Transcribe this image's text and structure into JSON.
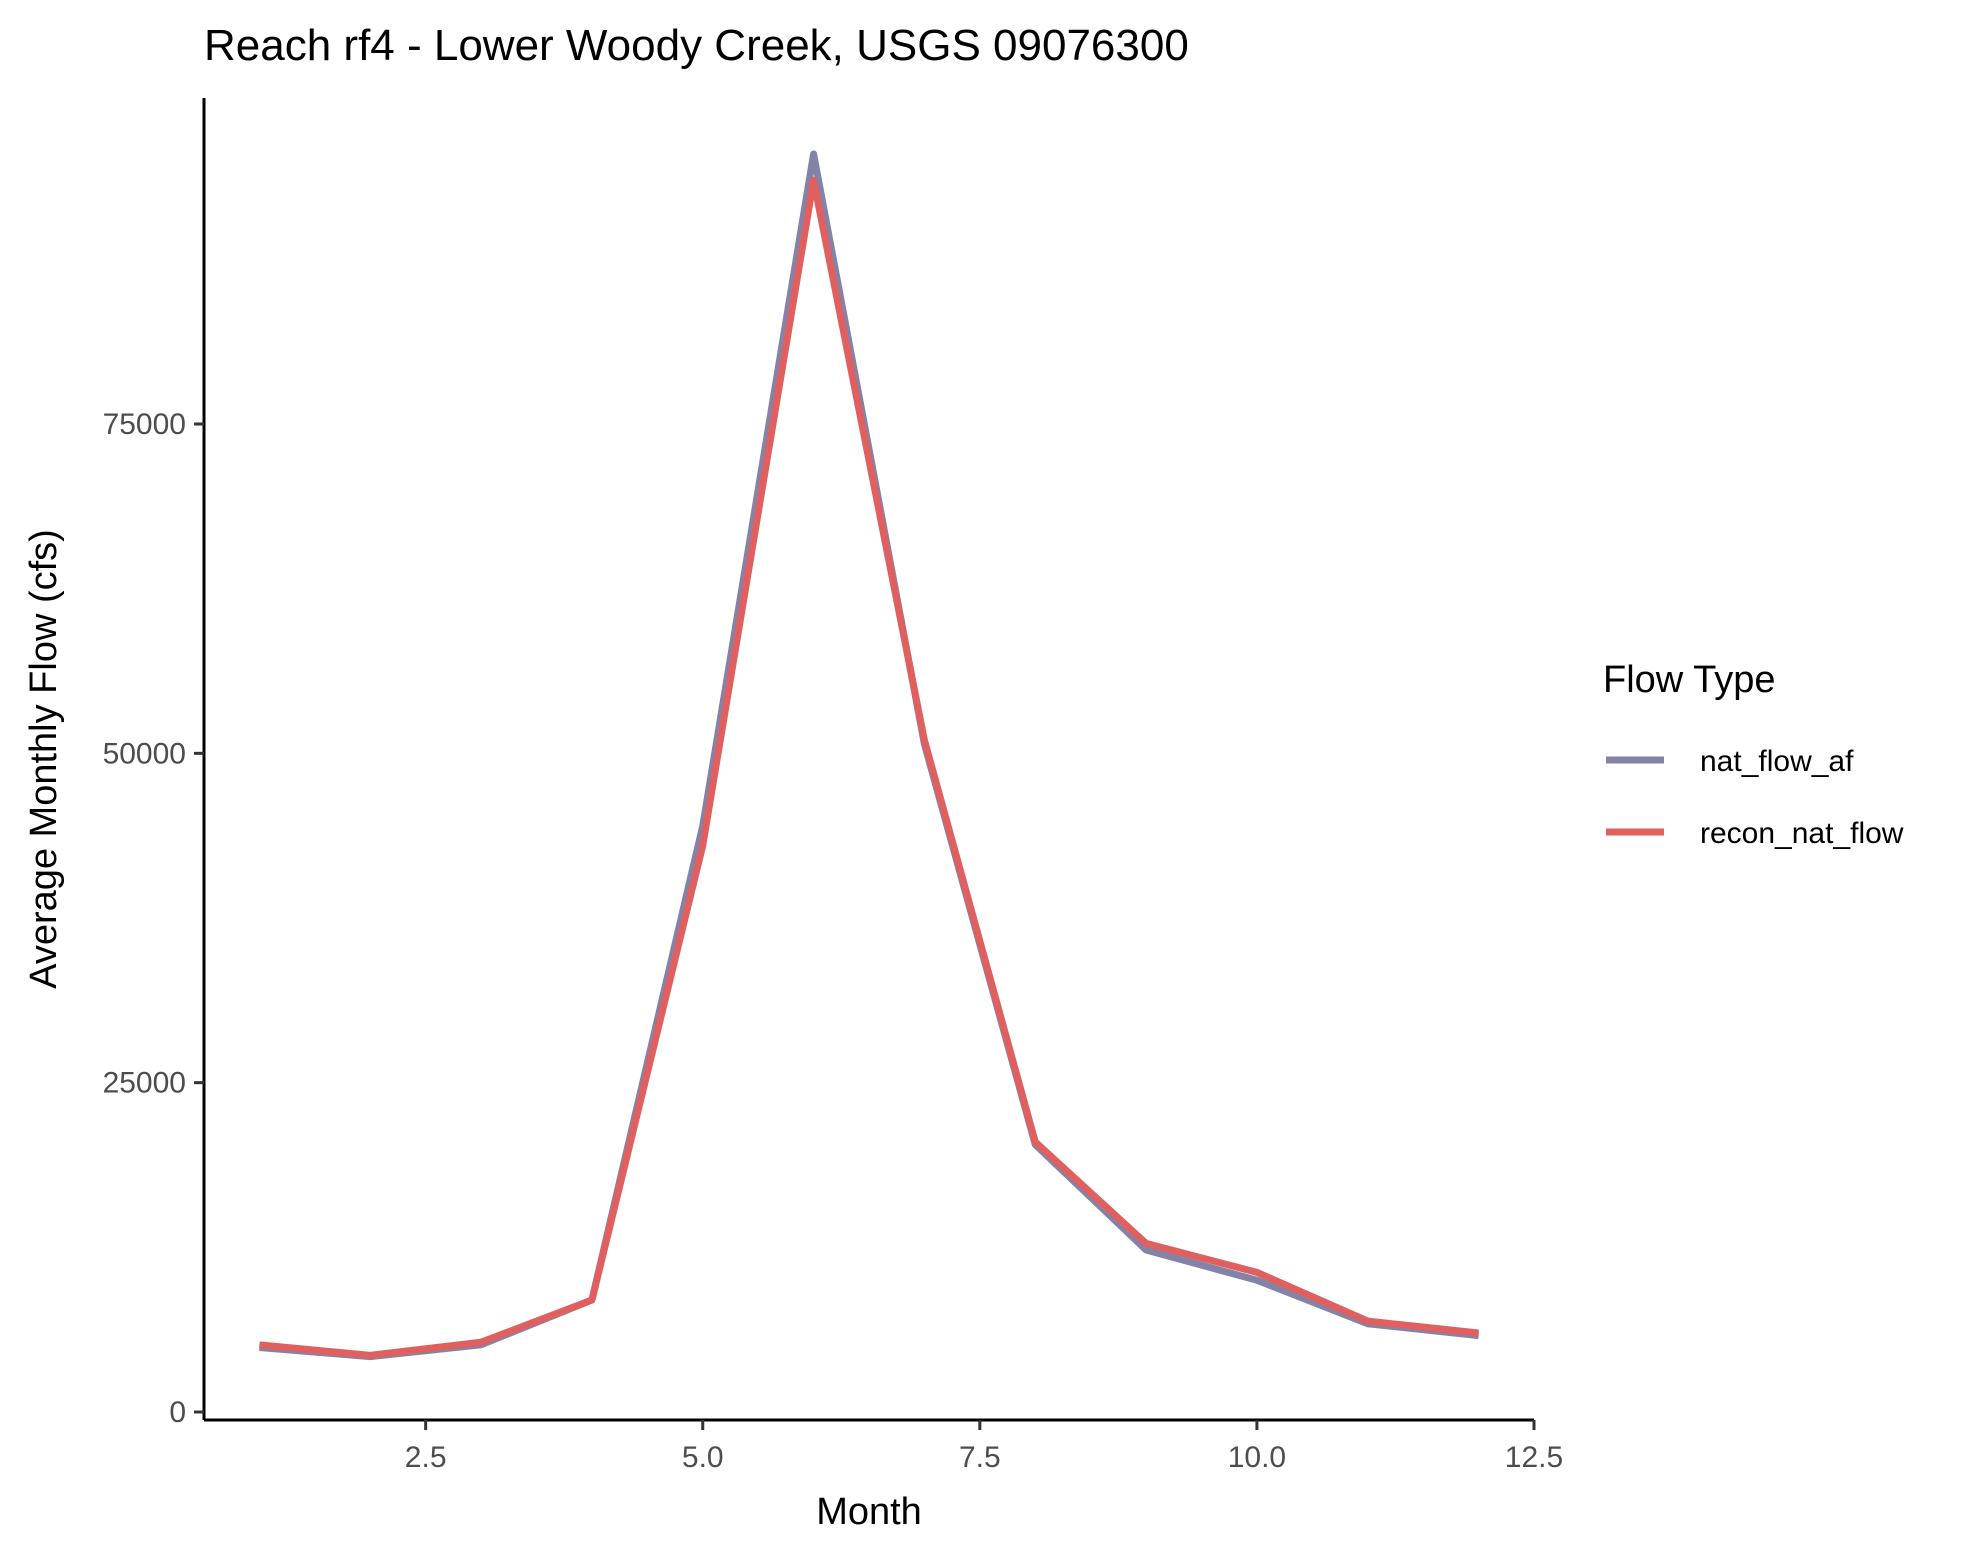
{
  "chart_data": {
    "type": "line",
    "title": "Reach rf4 - Lower Woody Creek, USGS 09076300",
    "xlabel": "Month",
    "ylabel": "Average Monthly Flow (cfs)",
    "xlim": [
      0.5,
      12.5
    ],
    "ylim": [
      0,
      100000
    ],
    "x_ticks": [
      2.5,
      5.0,
      7.5,
      10.0,
      12.5
    ],
    "x_tick_labels": [
      "2.5",
      "5.0",
      "7.5",
      "10.0",
      "12.5"
    ],
    "y_ticks": [
      0,
      25000,
      50000,
      75000
    ],
    "y_tick_labels": [
      "0",
      "25000",
      "50000",
      "75000"
    ],
    "grid": false,
    "legend": {
      "title": "Flow Type",
      "position": "right"
    },
    "x": [
      1,
      2,
      3,
      4,
      5,
      6,
      7,
      8,
      9,
      10,
      11,
      12
    ],
    "series": [
      {
        "name": "nat_flow_af",
        "color": "#8383a8",
        "values": [
          4900,
          4200,
          5100,
          8500,
          44500,
          95500,
          50700,
          20300,
          12300,
          10000,
          6700,
          5800
        ]
      },
      {
        "name": "recon_nat_flow",
        "color": "#e06060",
        "values": [
          5100,
          4300,
          5300,
          8500,
          43000,
          93500,
          51000,
          20500,
          12800,
          10600,
          6900,
          6000
        ]
      }
    ]
  }
}
